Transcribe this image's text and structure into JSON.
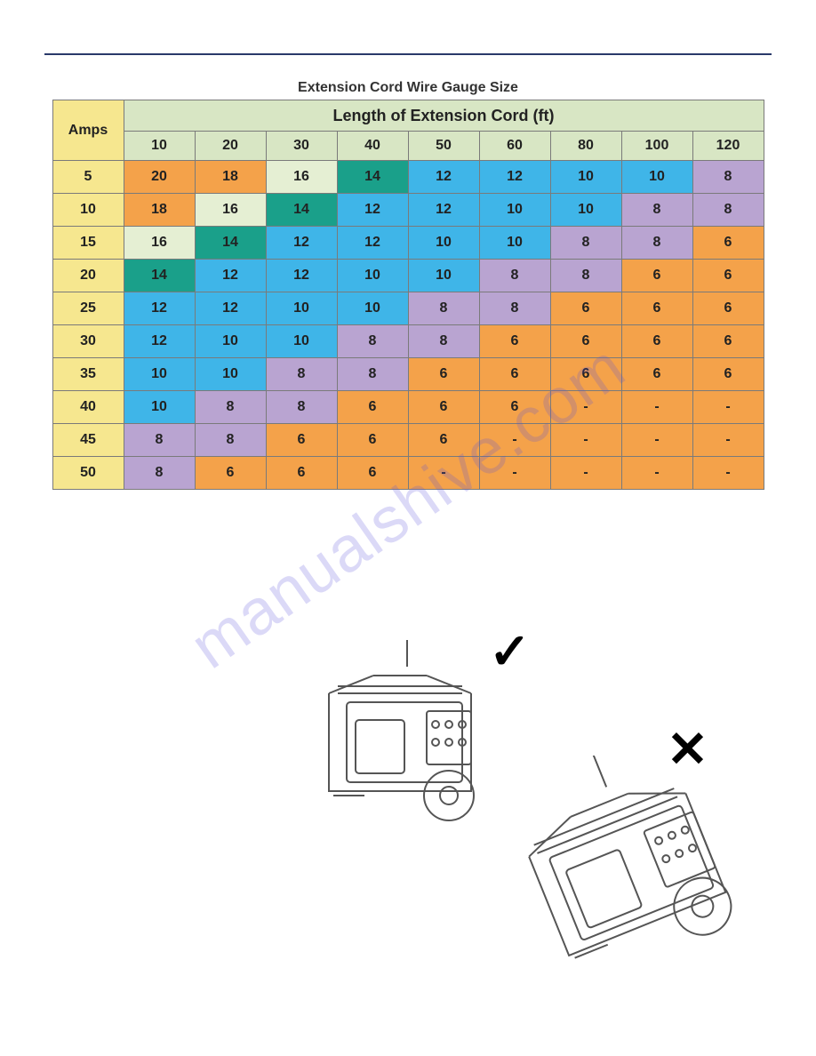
{
  "title": "Extension Cord Wire Gauge Size",
  "group_header": "Length of Extension Cord (ft)",
  "row_label": "Amps",
  "lengths": [
    "10",
    "20",
    "30",
    "40",
    "50",
    "60",
    "80",
    "100",
    "120"
  ],
  "amps": [
    "5",
    "10",
    "15",
    "20",
    "25",
    "30",
    "35",
    "40",
    "45",
    "50"
  ],
  "cells": [
    [
      "20",
      "18",
      "16",
      "14",
      "12",
      "12",
      "10",
      "10",
      "8"
    ],
    [
      "18",
      "16",
      "14",
      "12",
      "12",
      "10",
      "10",
      "8",
      "8"
    ],
    [
      "16",
      "14",
      "12",
      "12",
      "10",
      "10",
      "8",
      "8",
      "6"
    ],
    [
      "14",
      "12",
      "12",
      "10",
      "10",
      "8",
      "8",
      "6",
      "6"
    ],
    [
      "12",
      "12",
      "10",
      "10",
      "8",
      "8",
      "6",
      "6",
      "6"
    ],
    [
      "12",
      "10",
      "10",
      "8",
      "8",
      "6",
      "6",
      "6",
      "6"
    ],
    [
      "10",
      "10",
      "8",
      "8",
      "6",
      "6",
      "6",
      "6",
      "6"
    ],
    [
      "10",
      "8",
      "8",
      "6",
      "6",
      "6",
      "-",
      "-",
      "-"
    ],
    [
      "8",
      "8",
      "6",
      "6",
      "6",
      "-",
      "-",
      "-",
      "-"
    ],
    [
      "8",
      "6",
      "6",
      "6",
      "-",
      "-",
      "-",
      "-",
      "-"
    ]
  ],
  "palette": {
    "hdr_green": "#d8e6c4",
    "amps_yellow": "#f6e78f",
    "orange": "#f4a24a",
    "pale_green": "#e5efd3",
    "teal": "#1aa08a",
    "blue": "#3fb5e8",
    "purple": "#b9a4d1"
  },
  "cell_colors": [
    [
      "orange",
      "orange",
      "pale_green",
      "teal",
      "blue",
      "blue",
      "blue",
      "blue",
      "purple"
    ],
    [
      "orange",
      "pale_green",
      "teal",
      "blue",
      "blue",
      "blue",
      "blue",
      "purple",
      "purple"
    ],
    [
      "pale_green",
      "teal",
      "blue",
      "blue",
      "blue",
      "blue",
      "purple",
      "purple",
      "orange"
    ],
    [
      "teal",
      "blue",
      "blue",
      "blue",
      "blue",
      "purple",
      "purple",
      "orange",
      "orange"
    ],
    [
      "blue",
      "blue",
      "blue",
      "blue",
      "purple",
      "purple",
      "orange",
      "orange",
      "orange"
    ],
    [
      "blue",
      "blue",
      "blue",
      "purple",
      "purple",
      "orange",
      "orange",
      "orange",
      "orange"
    ],
    [
      "blue",
      "blue",
      "purple",
      "purple",
      "orange",
      "orange",
      "orange",
      "orange",
      "orange"
    ],
    [
      "blue",
      "purple",
      "purple",
      "orange",
      "orange",
      "orange",
      "orange",
      "orange",
      "orange"
    ],
    [
      "purple",
      "purple",
      "orange",
      "orange",
      "orange",
      "orange",
      "orange",
      "orange",
      "orange"
    ],
    [
      "purple",
      "orange",
      "orange",
      "orange",
      "orange",
      "orange",
      "orange",
      "orange",
      "orange"
    ]
  ],
  "watermark_text": "manualshive.com",
  "marks": {
    "check": "✓",
    "cross": "✕"
  }
}
